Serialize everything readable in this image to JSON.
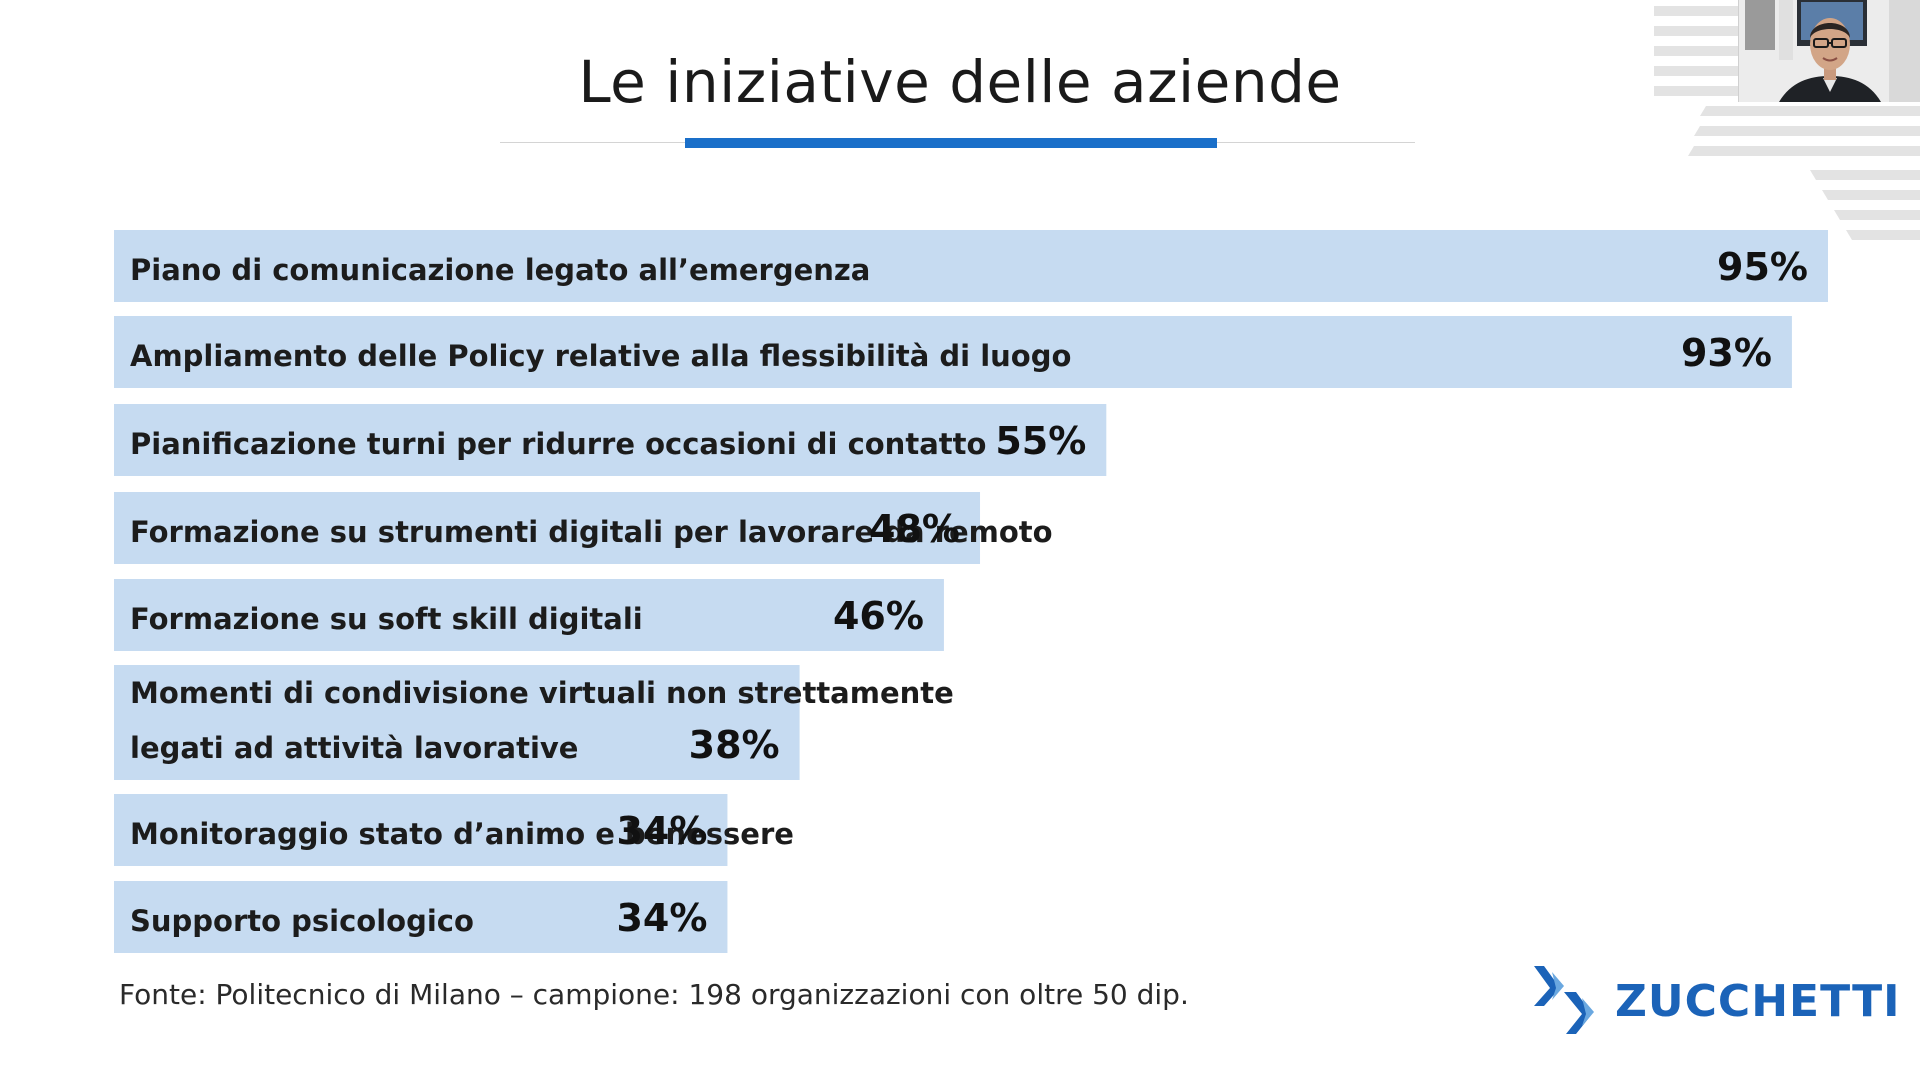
{
  "slide": {
    "title": "Le iniziative delle aziende",
    "source": "Fonte: Politecnico di Milano – campione: 198 organizzazioni con oltre 50 dip.",
    "logo_text": "ZUCCHETTI"
  },
  "colors": {
    "bar_fill": "#c6dbf1",
    "title_accent": "#1a6fc9",
    "logo": "#1b63b8"
  },
  "chart_data": {
    "type": "bar",
    "orientation": "horizontal",
    "categories": [
      [
        "Piano di comunicazione legato all’emergenza"
      ],
      [
        "Ampliamento delle Policy relative alla flessibilità di luogo"
      ],
      [
        "Pianificazione turni per ridurre occasioni di contatto"
      ],
      [
        "Formazione su strumenti digitali per lavorare da remoto"
      ],
      [
        "Formazione su soft skill digitali"
      ],
      [
        "Momenti di condivisione virtuali non strettamente",
        "legati ad attività lavorative"
      ],
      [
        "Monitoraggio stato d’animo e benessere"
      ],
      [
        "Supporto psicologico"
      ]
    ],
    "values": [
      95,
      93,
      55,
      48,
      46,
      38,
      34,
      34
    ],
    "value_labels": [
      "95%",
      "93%",
      "55%",
      "48%",
      "46%",
      "38%",
      "34%",
      "34%"
    ],
    "unit": "%",
    "xlim": [
      0,
      95
    ],
    "grid": false,
    "legend": "none"
  },
  "webcam": {
    "icon": "presenter-video-icon"
  }
}
